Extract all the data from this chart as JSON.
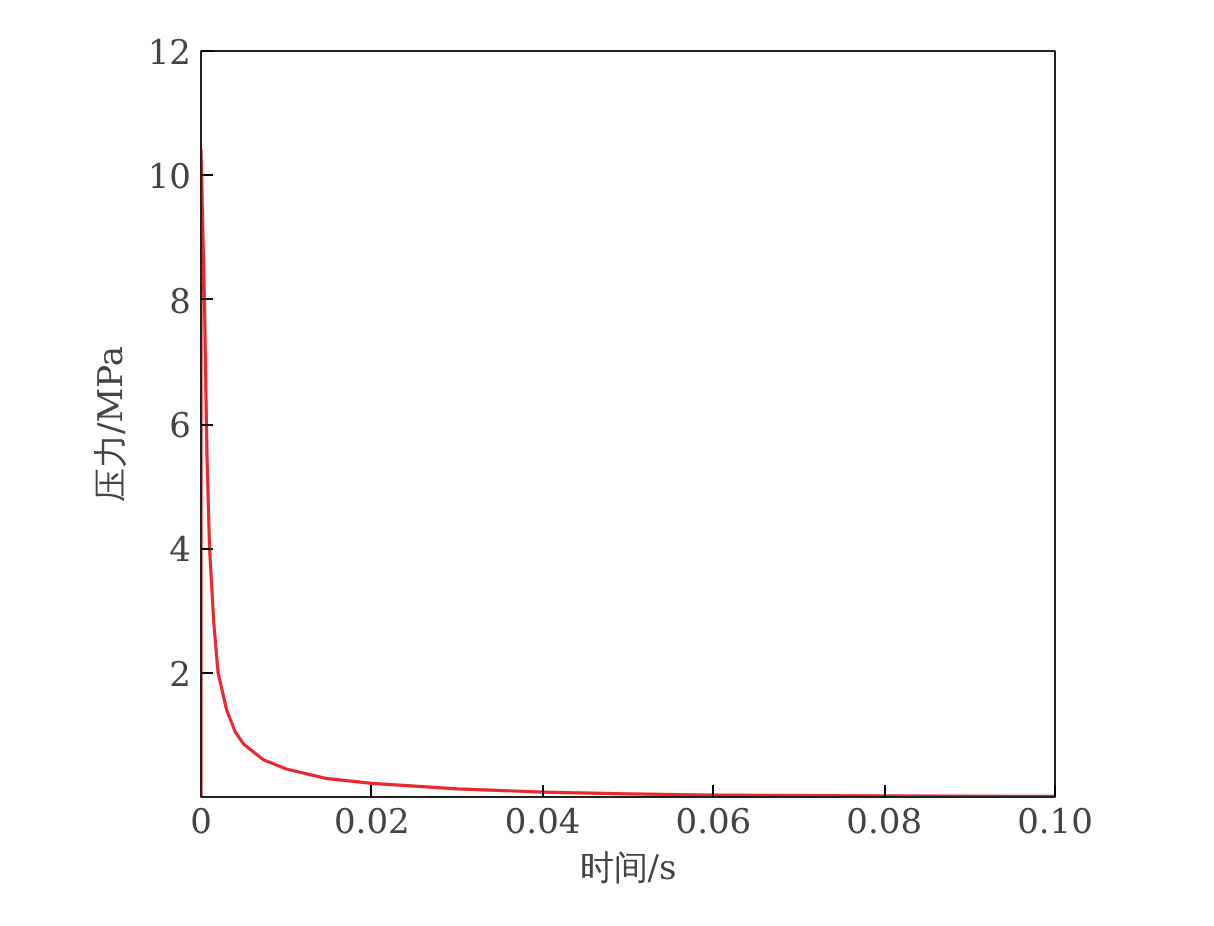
{
  "chart_data": {
    "type": "line",
    "xlabel": "时间/s",
    "ylabel": "压力/MPa",
    "x": [
      0,
      0,
      0.0004,
      0.0007,
      0.001,
      0.0015,
      0.002,
      0.003,
      0.004,
      0.005,
      0.0073,
      0.01,
      0.0146,
      0.02,
      0.03,
      0.04,
      0.05,
      0.06,
      0.08,
      0.1
    ],
    "series": [
      {
        "color": "#e8292e",
        "values": [
          0,
          10.4,
          8,
          5.5,
          4,
          2.8,
          2.0,
          1.4,
          1.05,
          0.85,
          0.6,
          0.45,
          0.3,
          0.22,
          0.13,
          0.08,
          0.05,
          0.03,
          0.02,
          0.01
        ]
      }
    ],
    "xlim": [
      0,
      0.1
    ],
    "ylim": [
      0,
      12
    ],
    "xticks": [
      0,
      0.02,
      0.04,
      0.06,
      0.08,
      {
        "value": 0.1,
        "label": "0.10"
      }
    ],
    "yticks": [
      2,
      4,
      6,
      8,
      10,
      12
    ],
    "grid": false,
    "marker": "none",
    "line_style": "solid"
  }
}
